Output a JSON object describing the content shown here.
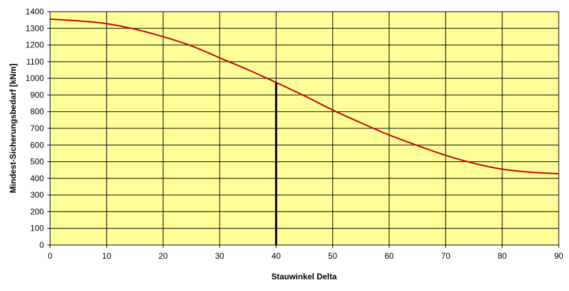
{
  "chart_data": {
    "type": "line",
    "title": "",
    "xlabel": "Stauwinkel Delta",
    "ylabel": "Mindest-Sicherungsbedarf [kNm]",
    "xlim": [
      0,
      90
    ],
    "ylim": [
      0,
      1400
    ],
    "x_ticks": [
      0,
      10,
      20,
      30,
      40,
      50,
      60,
      70,
      80,
      90
    ],
    "y_ticks": [
      0,
      100,
      200,
      300,
      400,
      500,
      600,
      700,
      800,
      900,
      1000,
      1100,
      1200,
      1300,
      1400
    ],
    "grid": true,
    "legend": "none",
    "plot_background": "#FFFF99",
    "grid_color": "#000000",
    "series": [
      {
        "color": "#CC0000",
        "x": [
          0,
          5,
          10,
          15,
          20,
          25,
          30,
          35,
          40,
          45,
          50,
          55,
          60,
          65,
          70,
          75,
          80,
          85,
          90
        ],
        "y": [
          1355,
          1345,
          1328,
          1295,
          1250,
          1195,
          1123,
          1052,
          975,
          895,
          810,
          733,
          660,
          597,
          538,
          490,
          455,
          437,
          428
        ]
      }
    ],
    "marker_line": {
      "x": 40,
      "y_from": 0,
      "y_to": 975,
      "color": "#000000"
    }
  }
}
